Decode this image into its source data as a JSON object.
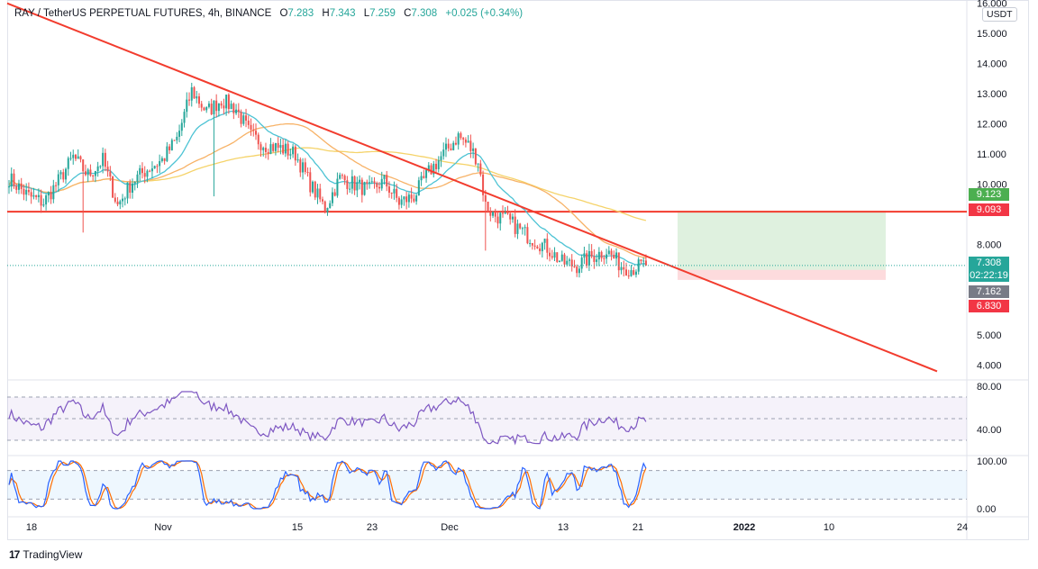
{
  "header": {
    "symbol": "RAY / TetherUS PERPETUAL FUTURES, 4h, BINANCE",
    "open_label": "O",
    "open": "7.283",
    "high_label": "H",
    "high": "7.343",
    "low_label": "L",
    "low": "7.259",
    "close_label": "C",
    "close": "7.308",
    "change": "+0.025 (+0.34%)"
  },
  "currency_button": "USDT",
  "price_axis_labels": [
    "16.000",
    "15.000",
    "14.000",
    "13.000",
    "12.000",
    "11.000",
    "10.000",
    "8.000",
    "5.000",
    "4.000"
  ],
  "price_tags": {
    "target": "9.123",
    "resistance": "9.093",
    "last_price": "7.308",
    "countdown": "02:22:19",
    "entry": "7.162",
    "stop": "6.830"
  },
  "rsi_axis_labels": [
    "80.00",
    "40.00"
  ],
  "stoch_axis_labels": [
    "100.00",
    "0.00"
  ],
  "time_axis_labels": [
    "18",
    "Nov",
    "15",
    "23",
    "Dec",
    "13",
    "21",
    "2022",
    "10",
    "24"
  ],
  "footer": {
    "logo": "17",
    "brand": "TradingView"
  },
  "colors": {
    "up": "#26a69a",
    "down": "#ef5350",
    "trendline": "#f23c2e",
    "ema_fast": "#4dc3d4",
    "ema_mid": "#f7b267",
    "ema_slow": "#f5d36a",
    "rsi": "#7e57c2",
    "stoch_k": "#2962ff",
    "stoch_d": "#ff6d00",
    "target_zone": "rgba(76,175,80,0.18)",
    "stop_zone": "rgba(242,54,69,0.18)"
  },
  "chart_data": {
    "type": "candlestick",
    "symbol": "RAY / TetherUS PERPETUAL FUTURES",
    "interval": "4h",
    "exchange": "BINANCE",
    "ylim": [
      3.6,
      16.0
    ],
    "price_anchors": [
      [
        0,
        10.2
      ],
      [
        8,
        9.6
      ],
      [
        14,
        9.4
      ],
      [
        20,
        10.1
      ],
      [
        26,
        10.9
      ],
      [
        32,
        10.3
      ],
      [
        38,
        10.8
      ],
      [
        44,
        9.3
      ],
      [
        50,
        10.1
      ],
      [
        56,
        10.5
      ],
      [
        62,
        10.8
      ],
      [
        68,
        11.5
      ],
      [
        74,
        13.1
      ],
      [
        80,
        12.4
      ],
      [
        86,
        12.8
      ],
      [
        92,
        12.5
      ],
      [
        98,
        11.6
      ],
      [
        104,
        11.3
      ],
      [
        110,
        11.2
      ],
      [
        116,
        11.0
      ],
      [
        122,
        10.0
      ],
      [
        128,
        9.2
      ],
      [
        134,
        10.2
      ],
      [
        140,
        10.0
      ],
      [
        146,
        9.8
      ],
      [
        152,
        10.1
      ],
      [
        158,
        9.4
      ],
      [
        164,
        9.6
      ],
      [
        170,
        10.4
      ],
      [
        176,
        11.0
      ],
      [
        182,
        11.6
      ],
      [
        186,
        11.3
      ],
      [
        190,
        10.8
      ],
      [
        193,
        9.3
      ],
      [
        196,
        9.0
      ],
      [
        202,
        8.8
      ],
      [
        210,
        8.3
      ],
      [
        218,
        7.9
      ],
      [
        224,
        7.4
      ],
      [
        230,
        7.3
      ],
      [
        236,
        7.6
      ],
      [
        242,
        7.8
      ],
      [
        248,
        7.3
      ],
      [
        252,
        7.2
      ],
      [
        258,
        7.35
      ]
    ],
    "last_price": 7.308,
    "trendline": {
      "from": {
        "date": "start",
        "price": 16.0
      },
      "to": {
        "date": "24",
        "price": 3.8
      }
    },
    "resistance": 9.093,
    "position": {
      "entry": 7.162,
      "target": 9.123,
      "stop": 6.83
    },
    "rsi": {
      "ylim": [
        30,
        80
      ],
      "upper": 70,
      "mid": 50,
      "lower": 30
    },
    "stoch": {
      "ylim": [
        0,
        100
      ],
      "upper": 80,
      "lower": 20
    }
  }
}
